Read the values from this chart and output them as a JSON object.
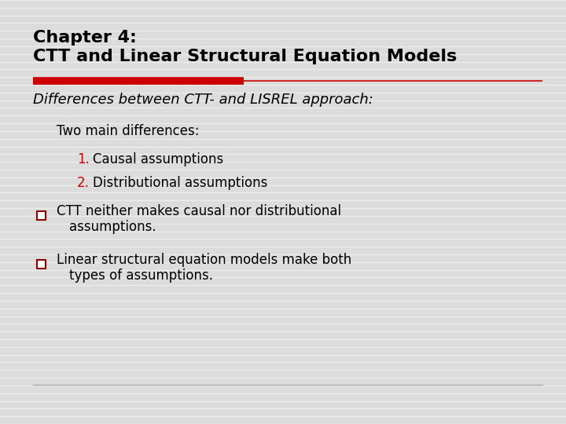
{
  "bg_color": "#dcdcdc",
  "title_line1": "Chapter 4:",
  "title_line2": "CTT and Linear Structural Equation Models",
  "title_color": "#000000",
  "title_fontsize": 16,
  "red_bar_color": "#cc0000",
  "thin_line_color": "#cc0000",
  "subtitle": "Differences between CTT- and LISREL approach:",
  "subtitle_color": "#000000",
  "subtitle_fontsize": 13,
  "subtitle_style": "italic",
  "indent1_text": "Two main differences:",
  "indent1_fontsize": 12,
  "num1_color": "#cc0000",
  "num1_text": "1.",
  "item1_text": "Causal assumptions",
  "num2_color": "#cc0000",
  "num2_text": "2.",
  "item2_text": "Distributional assumptions",
  "bullet_color": "#8b0000",
  "bullet1_line1": "CTT neither makes causal nor distributional",
  "bullet1_line2": "assumptions.",
  "bullet2_line1": "Linear structural equation models make both",
  "bullet2_line2": "types of assumptions.",
  "body_fontsize": 12,
  "bottom_line_color": "#aaaaaa",
  "stripe_color": "#ffffff",
  "stripe_alpha": 0.45
}
